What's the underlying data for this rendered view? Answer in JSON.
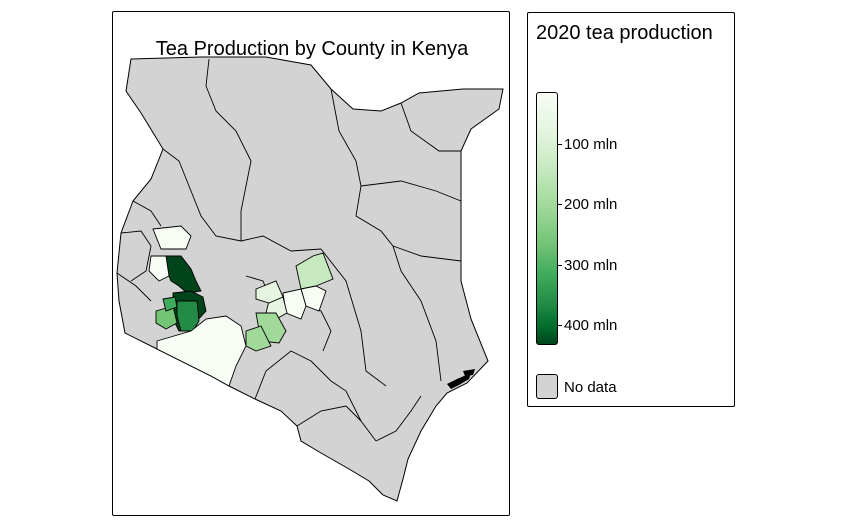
{
  "map": {
    "title": "Tea Production by County in Kenya",
    "country": "Kenya",
    "no_data_color": "#d3d3d3",
    "palette": [
      "#f7fcf5",
      "#e5f5e0",
      "#c7e9c0",
      "#a1d99b",
      "#74c476",
      "#41ab5d",
      "#238b45",
      "#006d2c",
      "#00441b"
    ]
  },
  "legend": {
    "title": "2020 tea production",
    "ticks": [
      "100 mln",
      "200 mln",
      "300 mln",
      "400 mln"
    ],
    "no_data_label": "No data"
  }
}
